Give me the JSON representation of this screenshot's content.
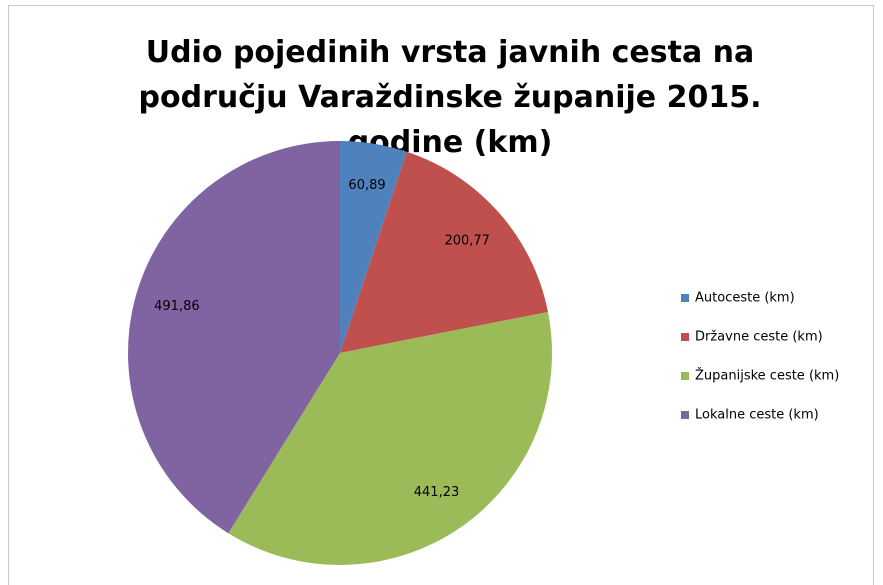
{
  "chart_data": {
    "type": "pie",
    "title": "Udio pojedinih vrsta javnih cesta na području Varaždinske županije 2015. godine (km)",
    "categories": [
      "Autoceste (km)",
      "Državne ceste (km)",
      "Županijske ceste (km)",
      "Lokalne ceste (km)"
    ],
    "values": [
      60.89,
      200.77,
      441.23,
      491.86
    ],
    "value_labels": [
      "60,89",
      "200,77",
      "441,23",
      "491,86"
    ],
    "colors": [
      "#4f81bd",
      "#c0504d",
      "#9bbb59",
      "#8064a2"
    ],
    "legend": "right"
  }
}
